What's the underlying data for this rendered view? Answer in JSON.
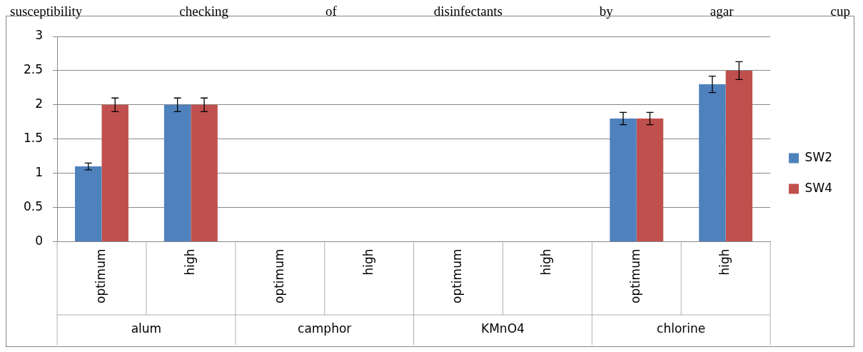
{
  "chart_data": {
    "type": "bar",
    "title": "susceptibility checking of disinfectants by agar cup",
    "categories": [
      "optimum",
      "high",
      "optimum",
      "high",
      "optimum",
      "high",
      "optimum",
      "high"
    ],
    "annotations": [
      "alum",
      "camphor",
      "KMnO4",
      "chlorine"
    ],
    "series": [
      {
        "name": "SW2",
        "color": "#4f81bd",
        "values": [
          1.1,
          2,
          0,
          0,
          0,
          0,
          1.8,
          2.3
        ],
        "errors": [
          0.05,
          0.1,
          null,
          null,
          null,
          null,
          0.09,
          0.12
        ]
      },
      {
        "name": "SW4",
        "color": "#c0504d",
        "values": [
          2,
          2,
          0,
          0,
          0,
          0,
          1.8,
          2.5
        ],
        "errors": [
          0.1,
          0.1,
          null,
          null,
          null,
          null,
          0.09,
          0.13
        ]
      }
    ],
    "ylim": [
      0,
      3
    ],
    "yticks": [
      0,
      0.5,
      1,
      1.5,
      2,
      2.5,
      3
    ],
    "grid": "y",
    "legend": "right"
  }
}
